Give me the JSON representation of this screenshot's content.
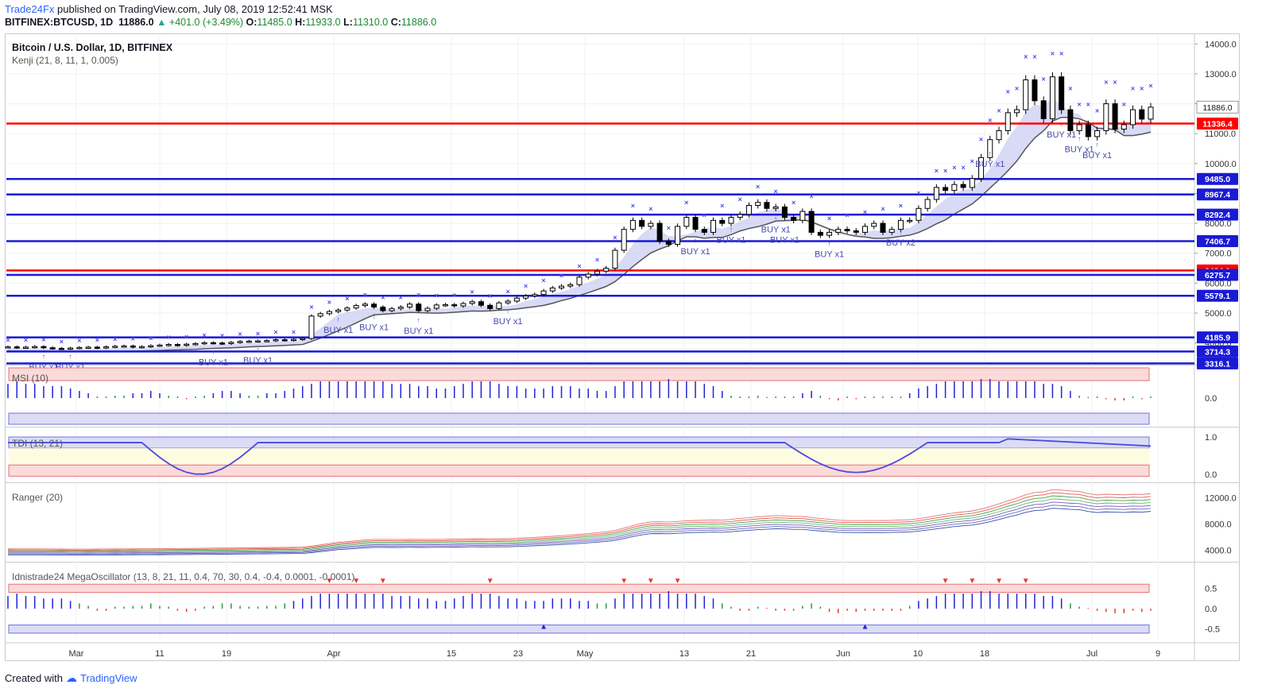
{
  "header": {
    "publisher": "Trade24Fx",
    "published_text": "published on TradingView.com, July 08, 2019 12:52:41 MSK",
    "symbol": "BITFINEX:BTCUSD, 1D",
    "last": "11886.0",
    "change": "+401.0 (+3.49%)",
    "o_label": "O:",
    "o": "11485.0",
    "h_label": "H:",
    "h": "11933.0",
    "l_label": "L:",
    "l": "11310.0",
    "c_label": "C:",
    "c": "11886.0"
  },
  "footer": {
    "created_with": "Created with",
    "brand": "TradingView"
  },
  "colors": {
    "up": "#26a69a",
    "red": "#ff0000",
    "blue": "#1a1ad6",
    "cloud": "#c8cbf2",
    "x_marker": "#4a4af0",
    "brand": "#2962ff"
  },
  "chart_data": [
    {
      "type": "candlestick",
      "title": "Bitcoin / U.S. Dollar, 1D, BITFINEX",
      "indicator": "Kenji (21, 8, 11, 1, 0.005)",
      "x_ticks": [
        "Mar",
        "11",
        "19",
        "Apr",
        "15",
        "23",
        "May",
        "13",
        "21",
        "Jun",
        "10",
        "18",
        "Jul",
        "9"
      ],
      "y_ticks": [
        4000.0,
        5000.0,
        6000.0,
        7000.0,
        8000.0,
        9000.0,
        10000.0,
        11000.0,
        12000.0,
        13000.0,
        14000.0
      ],
      "ylim": [
        3300,
        14300
      ],
      "current_price": 11886.0,
      "horizontal_levels": [
        {
          "value": 11336.4,
          "color": "red"
        },
        {
          "value": 9485.0,
          "color": "blue"
        },
        {
          "value": 8967.4,
          "color": "blue"
        },
        {
          "value": 8292.4,
          "color": "blue"
        },
        {
          "value": 7406.7,
          "color": "blue"
        },
        {
          "value": 6424.1,
          "color": "red"
        },
        {
          "value": 6275.7,
          "color": "blue"
        },
        {
          "value": 5579.1,
          "color": "blue"
        },
        {
          "value": 4185.9,
          "color": "blue"
        },
        {
          "value": 3714.3,
          "color": "blue"
        },
        {
          "value": 3316.1,
          "color": "blue"
        }
      ],
      "close": [
        3870,
        3850,
        3860,
        3880,
        3840,
        3820,
        3810,
        3830,
        3850,
        3860,
        3840,
        3870,
        3890,
        3900,
        3860,
        3880,
        3910,
        3930,
        3950,
        3920,
        3960,
        3980,
        4010,
        4000,
        3980,
        4020,
        4050,
        4060,
        4070,
        4080,
        4110,
        4100,
        4120,
        4150,
        4900,
        4980,
        5050,
        5100,
        5170,
        5250,
        5300,
        5200,
        5080,
        5150,
        5200,
        5300,
        5080,
        5160,
        5270,
        5280,
        5240,
        5320,
        5380,
        5260,
        5150,
        5340,
        5400,
        5500,
        5570,
        5620,
        5740,
        5840,
        5900,
        5950,
        6200,
        6300,
        6400,
        6500,
        7100,
        7800,
        8100,
        7900,
        8000,
        7400,
        7300,
        7900,
        8200,
        7800,
        7700,
        8100,
        8000,
        8200,
        8300,
        8600,
        8700,
        8500,
        8550,
        8200,
        8100,
        8400,
        7700,
        7600,
        7700,
        7800,
        7750,
        7700,
        7900,
        8000,
        7700,
        7800,
        8100,
        8100,
        8500,
        8800,
        9200,
        9100,
        9300,
        9200,
        9500,
        10200,
        10800,
        11100,
        11700,
        11800,
        12800,
        12100,
        11500,
        12900,
        11800,
        11100,
        11300,
        10900,
        11100,
        12000,
        11150,
        11300,
        11800,
        11486,
        11886
      ],
      "annotations": [
        "BUY x1",
        "BUY x1",
        "BUY x1",
        "BUY x1",
        "BUY x1",
        "BUY x1",
        "BUY x1",
        "BUY x1",
        "BUY x1",
        "BUY x1",
        "BUY x1",
        "BUY x1",
        "BUY x1",
        "BUY x2",
        "BUY x1",
        "BUY x1",
        "BUY x1",
        "BUY x1"
      ]
    },
    {
      "type": "bar",
      "title": "MSI (10)",
      "y_ticks": [
        0.0
      ],
      "values": [
        0.6,
        0.7,
        0.6,
        0.6,
        0.5,
        0.5,
        0.5,
        0.4,
        0.3,
        0.2,
        0.0,
        0.0,
        0.1,
        0.1,
        0.2,
        0.2,
        0.3,
        0.2,
        0.1,
        0.0,
        -0.05,
        0.0,
        0.1,
        0.2,
        0.3,
        0.3,
        0.2,
        0.1,
        0.1,
        0.2,
        0.2,
        0.3,
        0.4,
        0.5,
        0.6,
        0.7,
        0.7,
        0.7,
        0.7,
        0.7,
        0.7,
        0.7,
        0.7,
        0.6,
        0.6,
        0.6,
        0.5,
        0.5,
        0.4,
        0.4,
        0.5,
        0.6,
        0.7,
        0.7,
        0.7,
        0.6,
        0.5,
        0.5,
        0.4,
        0.4,
        0.4,
        0.5,
        0.5,
        0.5,
        0.4,
        0.4,
        0.3,
        0.3,
        0.5,
        0.7,
        0.7,
        0.7,
        0.7,
        0.7,
        0.8,
        0.7,
        0.7,
        0.7,
        0.6,
        0.5,
        0.3,
        0.1,
        0.0,
        0.0,
        0.1,
        0.05,
        0.0,
        0.0,
        0.0,
        0.2,
        0.3,
        0.1,
        -0.05,
        -0.1,
        0.0,
        -0.05,
        0.0,
        0.0,
        0.0,
        0.0,
        0.0,
        0.2,
        0.4,
        0.5,
        0.6,
        0.7,
        0.7,
        0.7,
        0.7,
        0.8,
        0.8,
        0.7,
        0.7,
        0.7,
        0.7,
        0.7,
        0.6,
        0.6,
        0.5,
        0.3,
        0.1,
        0.05,
        0.0,
        -0.05,
        -0.1,
        -0.1,
        0.0,
        -0.05,
        0.0
      ]
    },
    {
      "type": "line",
      "title": "TDI (13, 21)",
      "y_ticks": [
        1.0,
        0.0
      ],
      "ylim": [
        -0.1,
        1.1
      ]
    },
    {
      "type": "line",
      "title": "Ranger (20)",
      "y_ticks": [
        12000.0,
        8000.0,
        4000.0
      ],
      "ylim": [
        3000,
        13500
      ]
    },
    {
      "type": "bar",
      "title": "Idnistrade24 MegaOscillator (13, 8, 21, 11, 0.4, 70, 30, 0.4, -0.4, 0.0001, -0.0001)",
      "y_ticks": [
        0.5,
        0.0,
        -0.5
      ],
      "ylim": [
        -0.7,
        0.8
      ]
    }
  ]
}
